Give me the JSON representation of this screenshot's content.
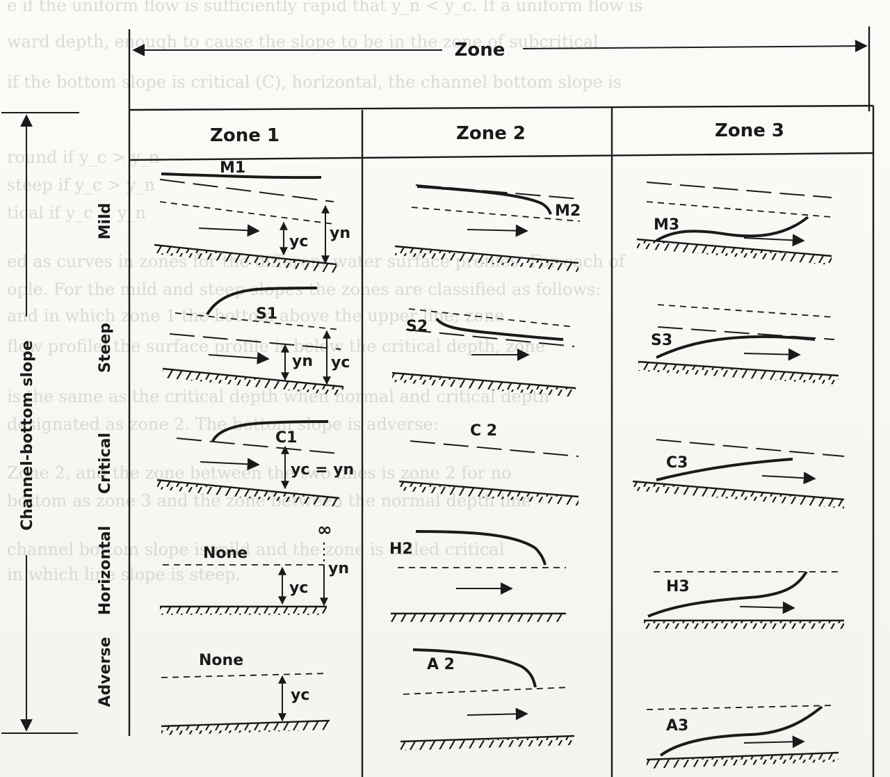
{
  "background_text": [
    "e if the uniform flow is sufficiently rapid that y_n < y_c. If a uniform flow is",
    "ward depth, enough to cause the slope to be in the zone of subcritical",
    "if the bottom slope is critical (C), horizontal, the channel bottom slope is",
    "round if y_c > y_n",
    "steep if y_c > y_n",
    "tical if y_c = y_n",
    "ed as curves in zones for the different water surface profiles. For each of",
    "ople. For the mild and steep slopes the zones are classified as follows:",
    "and in which zone 1 the bottom above the upper line; zone",
    "flow profile, the surface profile is below the critical depth, zone",
    "is the same as the critical depth when normal and critical depth",
    "designated as zone 2. The bottom slope is adverse:",
    "Zone 2, and the zone between the two lines is zone 2 for no",
    "bottom as zone 3 and the zone between the normal depth line",
    "channel bottom slope is mild and the zone is called critical",
    "in which line slope is steep."
  ],
  "header": {
    "zone": "Zone",
    "zone1": "Zone 1",
    "zone2": "Zone 2",
    "zone3": "Zone 3",
    "slope_axis": "Channel-bottom slope"
  },
  "rows": [
    {
      "slope": "Mild",
      "zone1": "M1",
      "zone2": "M2",
      "zone3": "M3"
    },
    {
      "slope": "Steep",
      "zone1": "S1",
      "zone2": "S2",
      "zone3": "S3"
    },
    {
      "slope": "Critical",
      "zone1": "C1",
      "zone2": "C 2",
      "zone3": "C3"
    },
    {
      "slope": "Horizontal",
      "zone1": "None",
      "zone2": "H2",
      "zone3": "H3"
    },
    {
      "slope": "Adverse",
      "zone1": "None",
      "zone2": "A 2",
      "zone3": "A3"
    }
  ],
  "depth_labels": {
    "yc": "yc",
    "yn": "yn",
    "yc_eq_yn": "yc = yn",
    "infinity": "∞"
  }
}
